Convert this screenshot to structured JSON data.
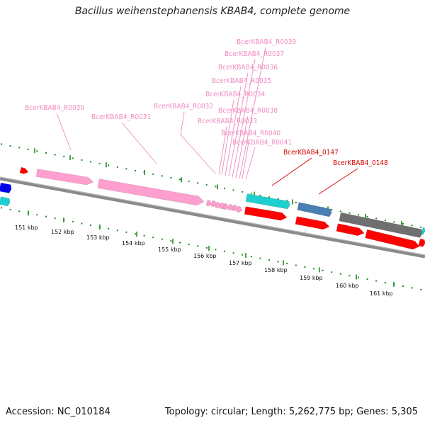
{
  "title": "Bacillus weihenstephanensis KBAB4, complete genome",
  "footer": {
    "accession": "Accession: NC_010184",
    "summary": "Topology: circular; Length: 5,262,775 bp; Genes: 5,305"
  },
  "tick_labels": [
    "151 kbp",
    "152 kbp",
    "153 kbp",
    "154 kbp",
    "155 kbp",
    "156 kbp",
    "157 kbp",
    "158 kbp",
    "159 kbp",
    "160 kbp",
    "161 kbp"
  ],
  "feature_labels": [
    {
      "text": "BcerKBAB4_R0030",
      "type": "rRNA"
    },
    {
      "text": "BcerKBAB4_R0031",
      "type": "rRNA"
    },
    {
      "text": "BcerKBAB4_R0032",
      "type": "tRNA"
    },
    {
      "text": "BcerKBAB4_R0033",
      "type": "tRNA"
    },
    {
      "text": "BcerKBAB4_R0034",
      "type": "tRNA"
    },
    {
      "text": "BcerKBAB4_R0035",
      "type": "tRNA"
    },
    {
      "text": "BcerKBAB4_R0036",
      "type": "tRNA"
    },
    {
      "text": "BcerKBAB4_R0037",
      "type": "tRNA"
    },
    {
      "text": "BcerKBAB4_R0038",
      "type": "tRNA"
    },
    {
      "text": "BcerKBAB4_R0039",
      "type": "tRNA"
    },
    {
      "text": "BcerKBAB4_R0040",
      "type": "tRNA"
    },
    {
      "text": "BcerKBAB4_R0041",
      "type": "tRNA"
    },
    {
      "text": "BcerKBAB4_0147",
      "type": "CDS"
    },
    {
      "text": "BcerKBAB4_0148",
      "type": "CDS"
    }
  ],
  "colors": {
    "rna": "#ff9fcf",
    "rna_label": "#f08cc0",
    "cds": "#ff0000",
    "cds_label": "#d40000",
    "cyan": "#1ecfcf",
    "steel": "#4a7fb5",
    "gray": "#6f6f6f",
    "blue": "#0000ee",
    "backbone": "#8a8a8a",
    "tick": "#1d8a1d"
  }
}
